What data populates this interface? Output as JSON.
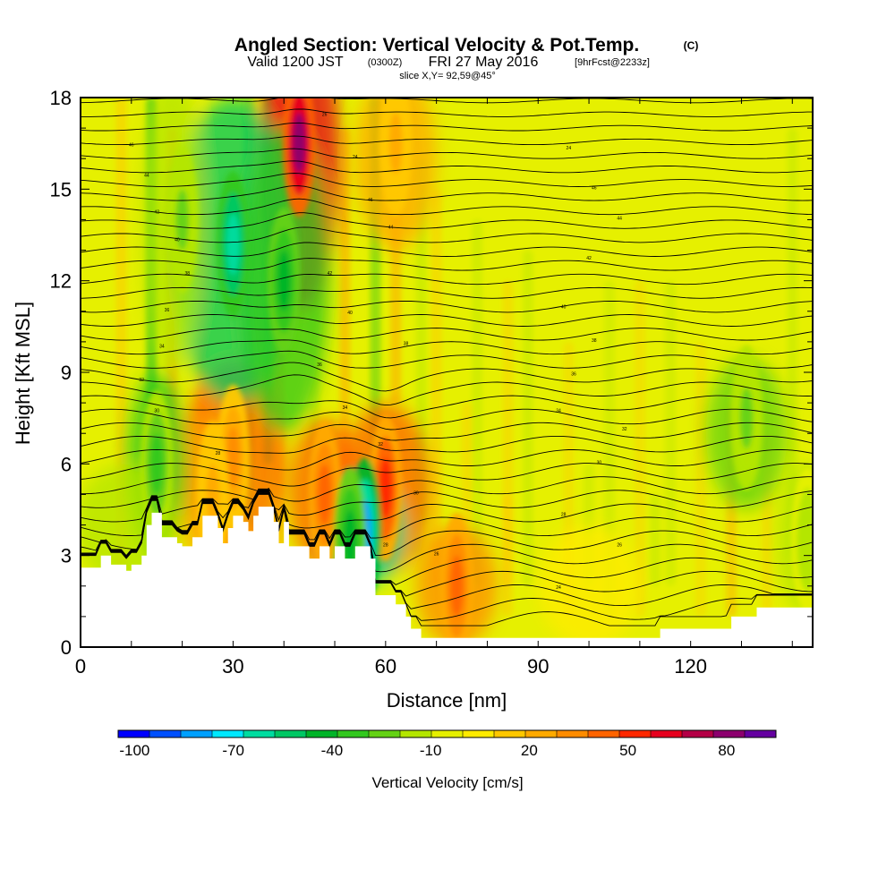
{
  "chart_data": {
    "type": "heatmap",
    "title_main": "Angled Section: Vertical Velocity & Pot.Temp.",
    "title_unit": "(C)",
    "subtitle_a": "Valid 1200 JST",
    "subtitle_b": "(0300Z)",
    "subtitle_c": "FRI 27 May 2016",
    "subtitle_d": "[9hrFcst@2233z]",
    "subtitle_slice": "slice X,Y= 92,59@45°",
    "xlabel": "Distance [nm]",
    "ylabel": "Height [Kft MSL]",
    "xlim": [
      0,
      144
    ],
    "ylim": [
      0,
      18
    ],
    "x_ticks": [
      0,
      30,
      60,
      90,
      120
    ],
    "y_ticks": [
      0,
      3,
      6,
      9,
      12,
      15,
      18
    ],
    "colorbar_label": "Vertical Velocity [cm/s]",
    "colorbar_ticks": [
      "-100",
      "-70",
      "-40",
      "-10",
      "20",
      "50",
      "80"
    ],
    "colorbar_range": [
      -105,
      95
    ],
    "colors": {
      "background_field": "#e6f000",
      "terrain": "#ffffff",
      "contour": "#000000"
    },
    "colorbar_colors": [
      "#0000ff",
      "#0050ff",
      "#00a0ff",
      "#00e8ff",
      "#00dca0",
      "#00c864",
      "#00b428",
      "#32c81e",
      "#64d214",
      "#b4e600",
      "#e6f000",
      "#ffeb00",
      "#ffc800",
      "#ffaa00",
      "#ff8c00",
      "#ff6400",
      "#ff2800",
      "#e6001e",
      "#b40046",
      "#8c006e",
      "#6400a0"
    ],
    "updrafts": [
      {
        "x": 30,
        "y": 6.2,
        "w": 30
      },
      {
        "x": 43,
        "y": 16.5,
        "w": 85
      },
      {
        "x": 60,
        "y": 5.2,
        "w": 55
      },
      {
        "x": 48,
        "y": 5.0,
        "w": 45
      },
      {
        "x": 74,
        "y": 2.0,
        "w": 40
      },
      {
        "x": 26,
        "y": 5.0,
        "w": 25
      },
      {
        "x": 62,
        "y": 16.5,
        "w": 20
      }
    ],
    "downdrafts": [
      {
        "x": 30,
        "y": 13.2,
        "w": -65
      },
      {
        "x": 40,
        "y": 12.0,
        "w": -40
      },
      {
        "x": 56,
        "y": 3.8,
        "w": -85
      },
      {
        "x": 15,
        "y": 6.0,
        "w": -35
      },
      {
        "x": 53,
        "y": 3.5,
        "w": -45
      },
      {
        "x": 20,
        "y": 14.0,
        "w": -20
      },
      {
        "x": 131,
        "y": 7.5,
        "w": -20
      },
      {
        "x": 143,
        "y": 3.5,
        "w": -15
      }
    ],
    "theta_labels": [
      "46",
      "44",
      "42",
      "40",
      "38",
      "36",
      "34",
      "32",
      "30",
      "28",
      "26",
      "24"
    ],
    "terrain_top_kft": [
      [
        0,
        2.6
      ],
      [
        4,
        2.6
      ],
      [
        4,
        3.0
      ],
      [
        6,
        3.0
      ],
      [
        6,
        2.7
      ],
      [
        9,
        2.7
      ],
      [
        9,
        2.5
      ],
      [
        10,
        2.5
      ],
      [
        10,
        2.7
      ],
      [
        12,
        2.7
      ],
      [
        12,
        3.0
      ],
      [
        13,
        3.0
      ],
      [
        13,
        4.0
      ],
      [
        14,
        4.0
      ],
      [
        14,
        4.4
      ],
      [
        16,
        4.4
      ],
      [
        16,
        3.6
      ],
      [
        18,
        3.6
      ],
      [
        18,
        3.6
      ],
      [
        19,
        3.6
      ],
      [
        19,
        3.4
      ],
      [
        20,
        3.4
      ],
      [
        20,
        3.3
      ],
      [
        22,
        3.3
      ],
      [
        22,
        3.6
      ],
      [
        24,
        3.6
      ],
      [
        24,
        4.3
      ],
      [
        27,
        4.3
      ],
      [
        27,
        3.9
      ],
      [
        28,
        3.9
      ],
      [
        28,
        3.4
      ],
      [
        29,
        3.4
      ],
      [
        29,
        3.9
      ],
      [
        30,
        3.9
      ],
      [
        30,
        4.3
      ],
      [
        32,
        4.3
      ],
      [
        32,
        4.1
      ],
      [
        33,
        4.1
      ],
      [
        33,
        3.8
      ],
      [
        34,
        3.8
      ],
      [
        34,
        4.3
      ],
      [
        35,
        4.3
      ],
      [
        35,
        4.6
      ],
      [
        38,
        4.6
      ],
      [
        38,
        4.1
      ],
      [
        39,
        4.1
      ],
      [
        39,
        3.4
      ],
      [
        40,
        3.4
      ],
      [
        40,
        4.1
      ],
      [
        41,
        4.1
      ],
      [
        41,
        3.3
      ],
      [
        45,
        3.3
      ],
      [
        45,
        2.9
      ],
      [
        47,
        2.9
      ],
      [
        47,
        3.3
      ],
      [
        49,
        3.3
      ],
      [
        49,
        2.9
      ],
      [
        50,
        2.9
      ],
      [
        50,
        3.3
      ],
      [
        52,
        3.3
      ],
      [
        52,
        2.9
      ],
      [
        54,
        2.9
      ],
      [
        54,
        3.3
      ],
      [
        57,
        3.3
      ],
      [
        57,
        2.9
      ],
      [
        58,
        2.9
      ],
      [
        58,
        1.7
      ],
      [
        62,
        1.7
      ],
      [
        62,
        1.4
      ],
      [
        64,
        1.4
      ],
      [
        64,
        1.0
      ],
      [
        65,
        1.0
      ],
      [
        65,
        0.6
      ],
      [
        67,
        0.6
      ],
      [
        67,
        0.3
      ],
      [
        98,
        0.3
      ],
      [
        98,
        0.3
      ],
      [
        114,
        0.3
      ],
      [
        114,
        0.6
      ],
      [
        128,
        0.6
      ],
      [
        128,
        1.0
      ],
      [
        133,
        1.0
      ],
      [
        133,
        1.3
      ],
      [
        144,
        1.3
      ]
    ]
  }
}
